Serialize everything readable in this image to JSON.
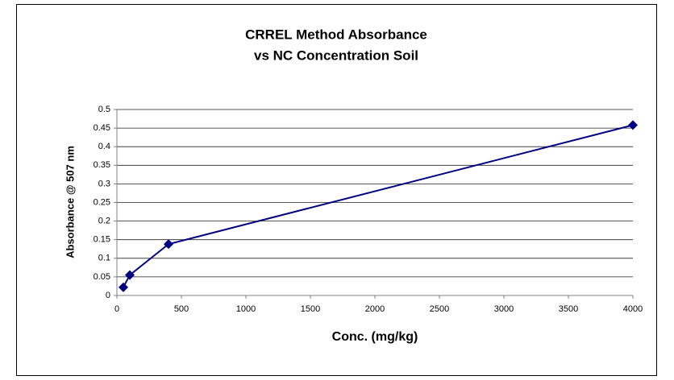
{
  "chart_data": {
    "type": "line",
    "title": [
      "CRREL Method Absorbance",
      "vs NC Concentration Soil"
    ],
    "x_label": "Conc. (mg/kg)",
    "y_label": "Absorbance @ 507 nm",
    "x": [
      50,
      100,
      400,
      4000
    ],
    "series": [
      {
        "name": "Absorbance",
        "color": "#000080",
        "values": [
          0.022,
          0.055,
          0.138,
          0.458
        ]
      }
    ],
    "xlim": [
      0,
      4000
    ],
    "xticks": [
      0,
      500,
      1000,
      1500,
      2000,
      2500,
      3000,
      3500,
      4000
    ],
    "ylim": [
      0,
      0.5
    ],
    "yticks": [
      0,
      0.05,
      0.1,
      0.15,
      0.2,
      0.25,
      0.3,
      0.35,
      0.4,
      0.45,
      0.5
    ],
    "grid": true,
    "legend": false
  }
}
